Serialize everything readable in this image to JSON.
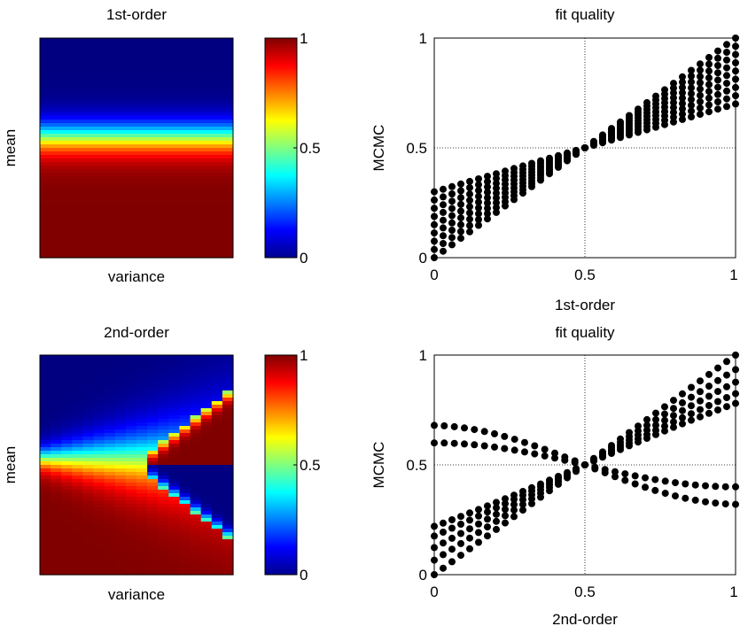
{
  "chart_data": [
    {
      "type": "heatmap",
      "title": "1st-order",
      "xlabel": "variance",
      "ylabel": "mean",
      "colormap": "jet",
      "clim": [
        0,
        1
      ],
      "colorbar_ticks": [
        "0",
        "0.5",
        "1"
      ],
      "pattern": "value depends on mean only; 0 (blue) for high mean rows, sigmoid transition to 1 (red) near 55% down the axis",
      "transition_center": 0.45,
      "transition_width": 0.045
    },
    {
      "type": "scatter",
      "title": "fit quality",
      "xlabel": "1st-order",
      "ylabel": "MCMC",
      "xlim": [
        0,
        1
      ],
      "ylim": [
        0,
        1
      ],
      "xticks": [
        "0",
        "0.5",
        "1"
      ],
      "yticks": [
        "0",
        "0.5",
        "1"
      ],
      "grid": "dotted at 0.5",
      "marker_color": "#000000",
      "series_count": 9,
      "description_values": "points fan from diagonal: y(x) between 0.5+(x-0.5)*0.45 and y=x"
    },
    {
      "type": "heatmap",
      "title": "2nd-order",
      "xlabel": "variance",
      "ylabel": "mean",
      "colormap": "jet",
      "clim": [
        0,
        1
      ],
      "colorbar_ticks": [
        "0",
        "0.5",
        "1"
      ],
      "pattern": "left: smooth blue-to-red transition; right (high variance): bifurcation with red wedge above and blue wedge below the midline"
    },
    {
      "type": "scatter",
      "title": "fit quality",
      "xlabel": "2nd-order",
      "ylabel": "MCMC",
      "xlim": [
        0,
        1
      ],
      "ylim": [
        0,
        1
      ],
      "xticks": [
        "0",
        "0.5",
        "1"
      ],
      "yticks": [
        "0",
        "0.5",
        "1"
      ],
      "grid": "dotted at 0.5",
      "marker_color": "#000000"
    }
  ],
  "labels": {
    "p1_title": "1st-order",
    "p1_x": "variance",
    "p1_y": "mean",
    "p2_title": "fit quality",
    "p2_x": "1st-order",
    "p2_y": "MCMC",
    "p3_title": "2nd-order",
    "p3_x": "variance",
    "p3_y": "mean",
    "p4_title": "fit quality",
    "p4_x": "2nd-order",
    "p4_y": "MCMC",
    "cb_0": "0",
    "cb_half": "0.5",
    "cb_1": "1",
    "ax_0": "0",
    "ax_half": "0.5",
    "ax_1": "1"
  }
}
